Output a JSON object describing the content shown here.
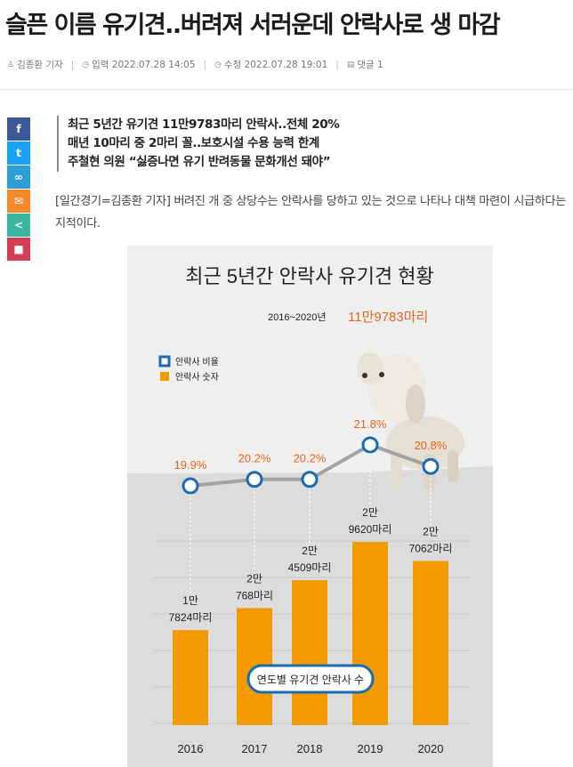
{
  "article": {
    "headline": "슬픈 이름 유기견..버려져 서러운데 안락사로 생 마감",
    "author": "김종환 기자",
    "published": "입력 2022.07.28 14:05",
    "modified": "수정 2022.07.28 19:01",
    "comments": "댓글 1",
    "summary": [
      "최근 5년간 유기견 11만9783마리 안락사..전체 20%",
      "매년 10마리 중 2마리 꼴..보호시설 수용 능력 한계",
      "주철현 의원 “싫증나면 유기 반려동물 문화개선 돼야”"
    ],
    "lead": "[일간경기=김종환 기자] 버려진 개 중 상당수는 안락사를 당하고 있는 것으로 나타나 대책 마련이 시급하다는 지적이다."
  },
  "share": {
    "facebook": "f",
    "twitter": "t",
    "link": "∞",
    "mail": "✉",
    "share": "<",
    "bookmark": "■"
  },
  "chart_data": {
    "type": "bar",
    "title": "최근 5년간 안락사 유기견 현황",
    "period": "2016~2020년",
    "total": "11만9783마리",
    "categories": [
      "2016",
      "2017",
      "2018",
      "2019",
      "2020"
    ],
    "series": [
      {
        "name": "안락사 숫자",
        "values": [
          17824,
          20768,
          24509,
          29620,
          27062
        ],
        "color": "#f39a00"
      },
      {
        "name": "안락사 비율",
        "values": [
          19.9,
          20.2,
          20.2,
          21.8,
          20.8
        ],
        "color": "#1b6bb0"
      }
    ],
    "bar_labels": [
      [
        "1만",
        "7824마리"
      ],
      [
        "2만",
        "768마리"
      ],
      [
        "2만",
        "4509마리"
      ],
      [
        "2만",
        "9620마리"
      ],
      [
        "2만",
        "7062마리"
      ]
    ],
    "rate_labels": [
      "19.9%",
      "20.2%",
      "20.2%",
      "21.8%",
      "20.8%"
    ],
    "caption": "연도별 유기견 안락사 수",
    "legend_position": "top-left"
  }
}
